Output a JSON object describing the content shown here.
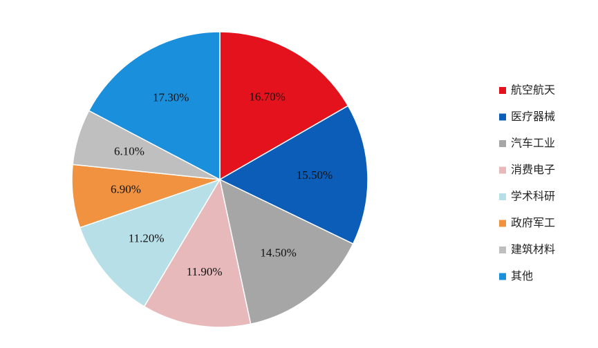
{
  "chart_data": {
    "type": "pie",
    "title": "",
    "categories": [
      "航空航天",
      "医疗器械",
      "汽车工业",
      "消费电子",
      "学术科研",
      "政府军工",
      "建筑材料",
      "其他"
    ],
    "values": [
      16.7,
      15.5,
      14.5,
      11.9,
      11.2,
      6.9,
      6.1,
      17.3
    ],
    "labels": [
      "16.70%",
      "15.50%",
      "14.50%",
      "11.90%",
      "11.20%",
      "6.90%",
      "6.10%",
      "17.30%"
    ],
    "colors": [
      "#e3121c",
      "#0b5db8",
      "#a6a6a6",
      "#e8b9bb",
      "#b7dfe8",
      "#f0923f",
      "#bfbfbf",
      "#1a8fdb"
    ],
    "start_angle_deg": 0,
    "direction": "clockwise",
    "legend": {
      "position": "right"
    }
  }
}
